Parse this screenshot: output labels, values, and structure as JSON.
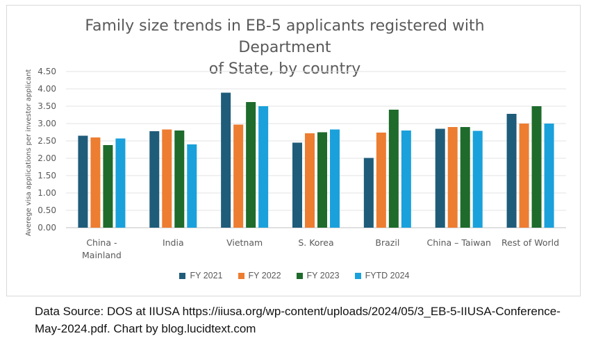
{
  "chart_data": {
    "type": "bar",
    "title_line1": "Family size trends in EB-5 applicants registered with Department",
    "title_line2": "of State, by country",
    "ylabel": "Averege visa applications per investor applicant",
    "xlabel": "",
    "ylim": [
      0,
      4.5
    ],
    "yticks": [
      "0.00",
      "0.50",
      "1.00",
      "1.50",
      "2.00",
      "2.50",
      "3.00",
      "3.50",
      "4.00",
      "4.50"
    ],
    "grid": true,
    "legend_position": "bottom",
    "categories": [
      [
        "China -",
        "Mainland"
      ],
      [
        "India"
      ],
      [
        "Vietnam"
      ],
      [
        "S. Korea"
      ],
      [
        "Brazil"
      ],
      [
        "China – Taiwan"
      ],
      [
        "Rest of World"
      ]
    ],
    "series": [
      {
        "name": "FY 2021",
        "color": "#1f5c7a",
        "values": [
          2.65,
          2.78,
          3.89,
          2.45,
          2.01,
          2.85,
          3.28
        ]
      },
      {
        "name": "FY 2022",
        "color": "#ed7d31",
        "values": [
          2.6,
          2.83,
          2.97,
          2.72,
          2.74,
          2.9,
          3.0
        ]
      },
      {
        "name": "FY 2023",
        "color": "#1e6b2c",
        "values": [
          2.38,
          2.8,
          3.62,
          2.75,
          3.4,
          2.9,
          3.5
        ]
      },
      {
        "name": "FYTD 2024",
        "color": "#1aa1db",
        "values": [
          2.57,
          2.4,
          3.5,
          2.83,
          2.8,
          2.79,
          3.0
        ]
      }
    ]
  },
  "footnote": "Data Source: DOS at IIUSA https://iiusa.org/wp-content/uploads/2024/05/3_EB-5-IIUSA-Conference-May-2024.pdf. Chart by blog.lucidtext.com"
}
